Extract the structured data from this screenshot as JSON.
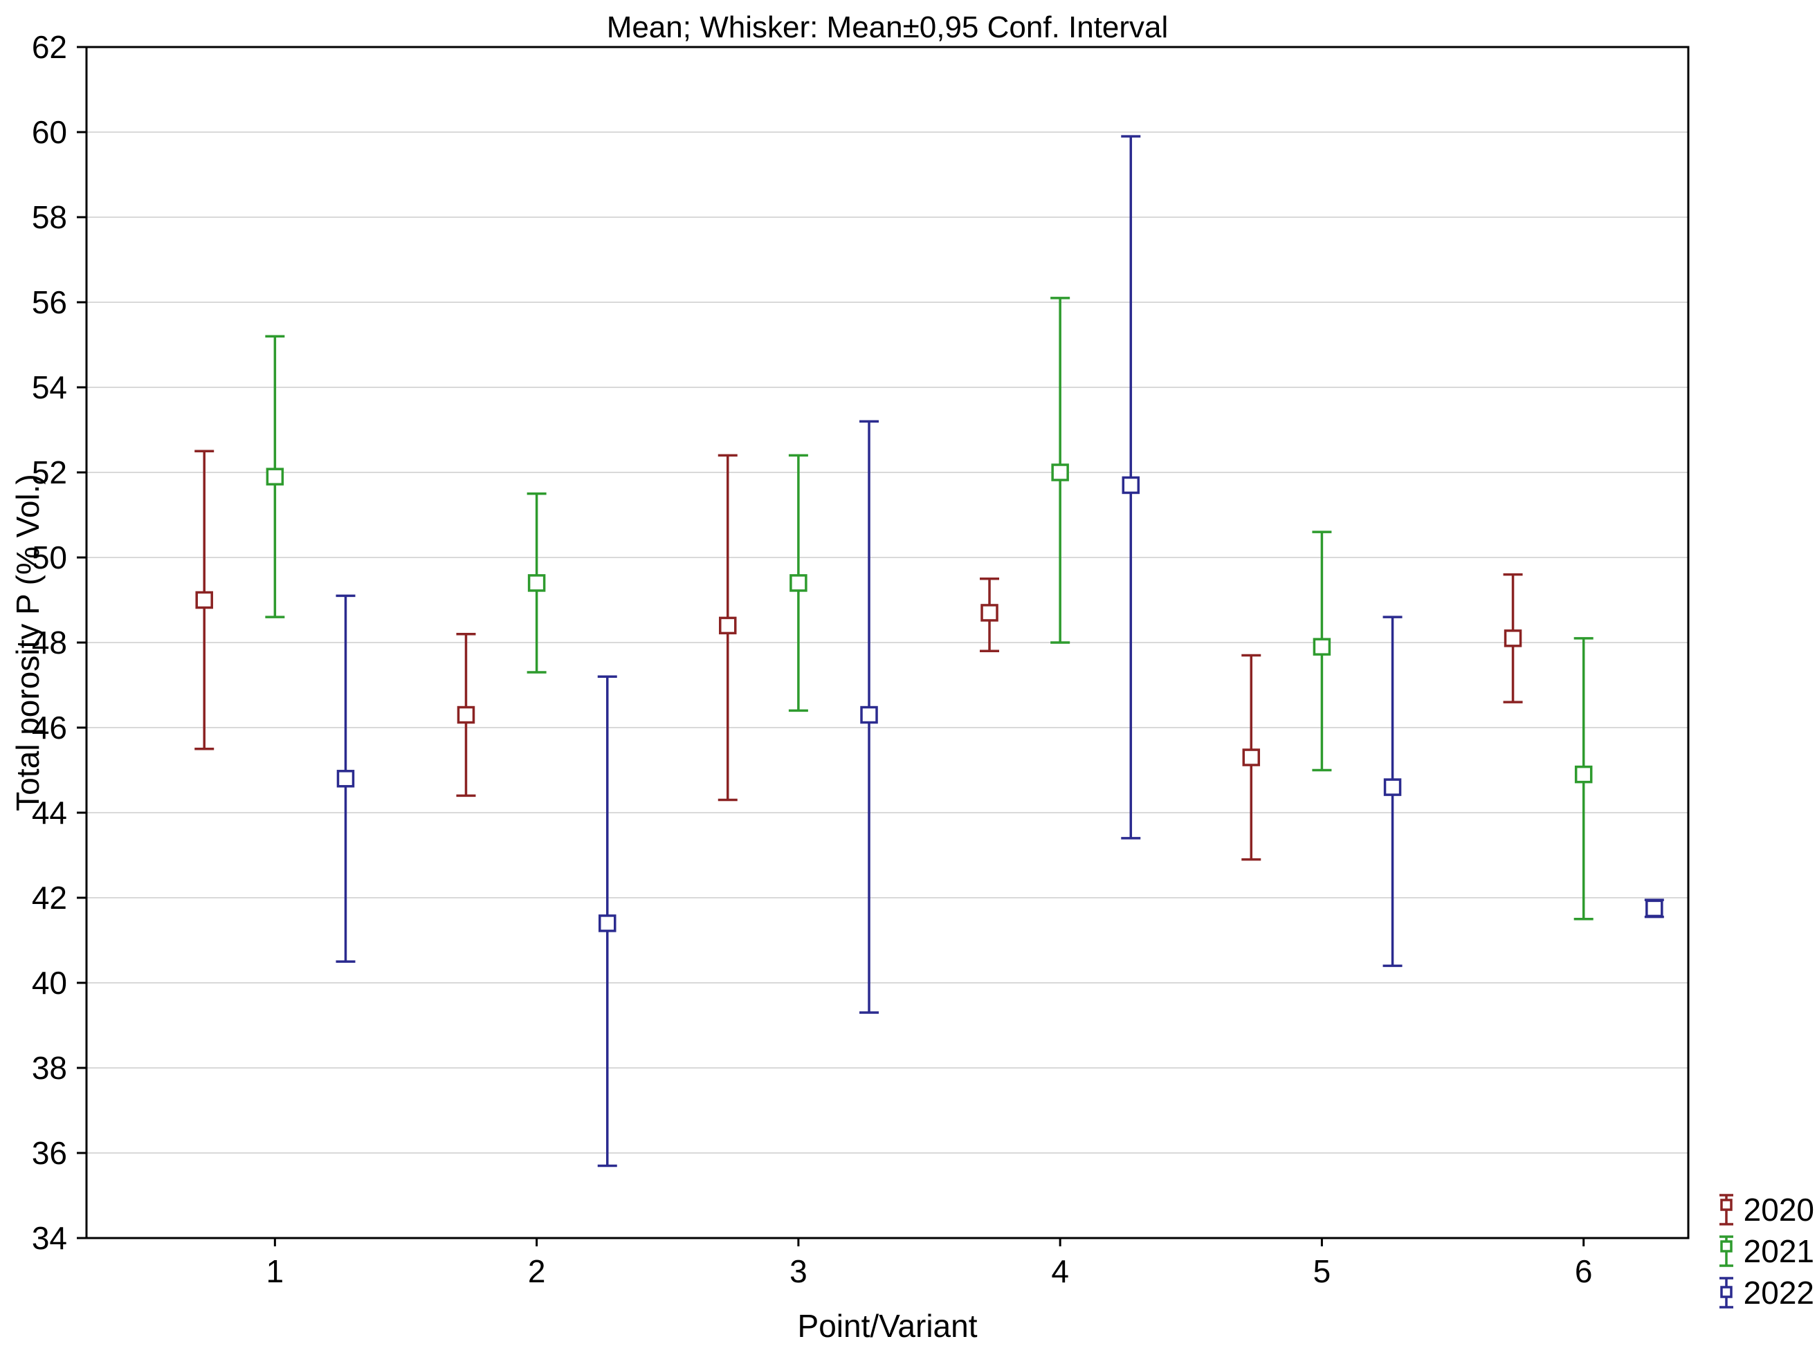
{
  "title": "Mean; Whisker: Mean±0,95 Conf. Interval",
  "chart_data": {
    "type": "error-bar",
    "title": "Mean; Whisker: Mean±0,95 Conf. Interval",
    "xlabel": "Point/Variant",
    "ylabel": "Total porosity P (% Vol.)",
    "categories": [
      1,
      2,
      3,
      4,
      5,
      6
    ],
    "ylim": [
      34,
      62
    ],
    "ytick_step": 2,
    "grid": "horizontal",
    "legend_position": "bottom-right",
    "marker": "open-square",
    "whisker_definition": "Mean ± 0.95 Conf. Interval",
    "series": [
      {
        "name": "2020",
        "color": "#8B2323",
        "means": [
          49.0,
          46.3,
          48.4,
          48.7,
          45.3,
          48.1
        ],
        "upper": [
          52.5,
          48.2,
          52.4,
          49.5,
          47.7,
          49.6
        ],
        "lower": [
          45.5,
          44.4,
          44.3,
          47.8,
          42.9,
          46.6
        ]
      },
      {
        "name": "2021",
        "color": "#2E9B2E",
        "means": [
          51.9,
          49.4,
          49.4,
          52.0,
          47.9,
          44.9
        ],
        "upper": [
          55.2,
          51.5,
          52.4,
          56.1,
          50.6,
          48.1
        ],
        "lower": [
          48.6,
          47.3,
          46.4,
          48.0,
          45.0,
          41.5
        ]
      },
      {
        "name": "2022",
        "color": "#2B2B8F",
        "means": [
          44.8,
          41.4,
          46.3,
          51.7,
          44.6,
          41.75
        ],
        "upper": [
          49.1,
          47.2,
          53.2,
          59.9,
          48.6,
          41.95
        ],
        "lower": [
          40.5,
          35.7,
          39.3,
          43.4,
          40.4,
          41.55
        ]
      }
    ]
  }
}
